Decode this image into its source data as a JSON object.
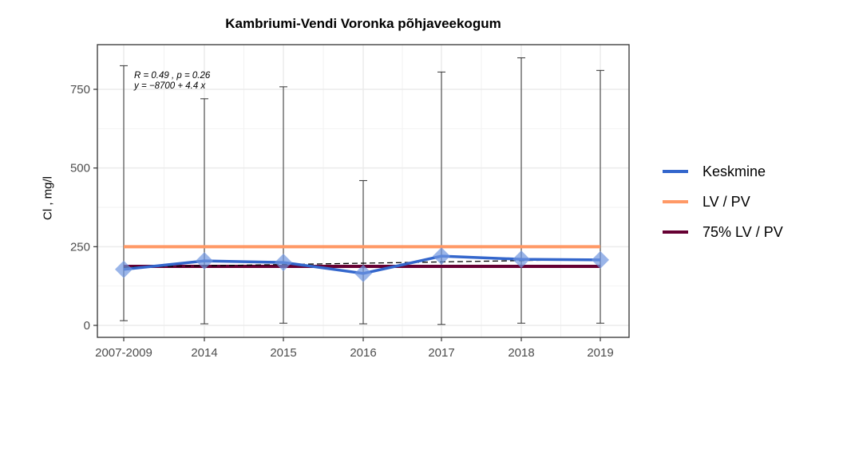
{
  "chart_data": {
    "type": "line",
    "title": "Kambriumi-Vendi Voronka põhjaveekogum",
    "xlabel": "",
    "ylabel": "Cl , mg/l",
    "categories": [
      "2007-2009",
      "2014",
      "2015",
      "2016",
      "2017",
      "2018",
      "2019"
    ],
    "yticks": [
      0,
      250,
      500,
      750
    ],
    "ylim": [
      -40,
      885
    ],
    "grid": true,
    "legend_position": "right",
    "series": [
      {
        "name": "Keskmine",
        "color": "#3366CC",
        "values": [
          178,
          205,
          200,
          165,
          220,
          210,
          208
        ]
      },
      {
        "name": "LV / PV",
        "color": "#FF9966",
        "values": [
          250,
          250,
          250,
          250,
          250,
          250,
          250
        ]
      },
      {
        "name": "75% LV / PV",
        "color": "#660033",
        "values": [
          187.5,
          187.5,
          187.5,
          187.5,
          187.5,
          187.5,
          187.5
        ]
      }
    ],
    "error_bars": {
      "upper": [
        825,
        720,
        758,
        460,
        805,
        850,
        810
      ],
      "lower": [
        15,
        5,
        7,
        5,
        3,
        7,
        7
      ]
    },
    "trend_line": {
      "style": "dashed",
      "color": "#000000",
      "start": 185,
      "end": 210
    },
    "annotation": {
      "line1": "R = 0.49 , p = 0.26",
      "line2": "y = −8700 + 4.4 x"
    }
  },
  "legend": {
    "items": [
      {
        "label": "Keskmine",
        "color": "#3366CC"
      },
      {
        "label": "LV / PV",
        "color": "#FF9966"
      },
      {
        "label": "75% LV / PV",
        "color": "#660033"
      }
    ]
  }
}
